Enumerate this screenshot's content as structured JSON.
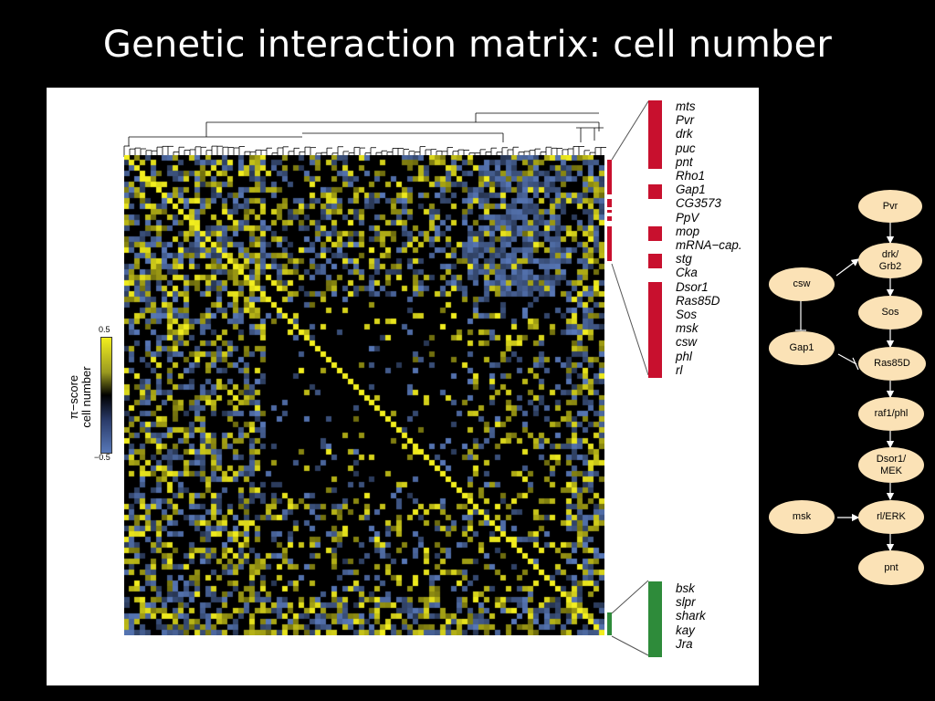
{
  "title": "Genetic interaction matrix: cell number",
  "legend": {
    "max": "0.5",
    "min": "−0.5",
    "label_line1": "π−score",
    "label_line2": "cell number",
    "colors": {
      "positive": "#f2ee1e",
      "zero": "#000000",
      "negative": "#5878b8"
    }
  },
  "red_cluster": {
    "color": "#c8102e",
    "genes": [
      "mts",
      "Pvr",
      "drk",
      "puc",
      "pnt",
      "Rho1",
      "Gap1",
      "CG3573",
      "PpV",
      "mop",
      "mRNA−cap.",
      "stg",
      "Cka",
      "Dsor1",
      "Ras85D",
      "Sos",
      "msk",
      "csw",
      "phl",
      "rl"
    ]
  },
  "green_cluster": {
    "color": "#2e8b3a",
    "genes": [
      "bsk",
      "slpr",
      "shark",
      "kay",
      "Jra"
    ]
  },
  "pathway": {
    "nodes": {
      "pvr": "Pvr",
      "drk_line1": "drk/",
      "drk_line2": "Grb2",
      "csw": "csw",
      "sos": "Sos",
      "gap1": "Gap1",
      "ras": "Ras85D",
      "raf": "raf1/phl",
      "dsor_line1": "Dsor1/",
      "dsor_line2": "MEK",
      "msk": "msk",
      "rl": "rl/ERK",
      "pnt": "pnt"
    }
  }
}
